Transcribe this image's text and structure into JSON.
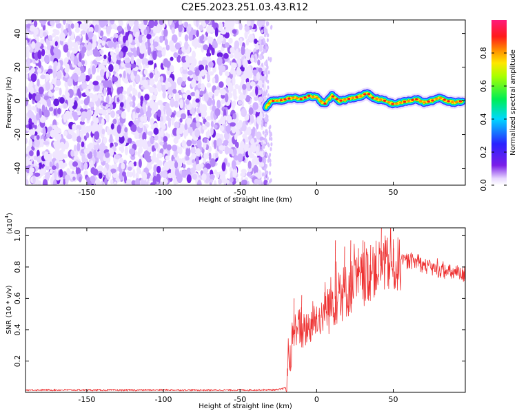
{
  "figure": {
    "title": "C2E5.2023.251.03.43.R12"
  },
  "chart_data": [
    {
      "type": "heatmap",
      "title": "",
      "xlabel": "Height of straight line (km)",
      "ylabel": "Frequency (Hz)",
      "xlim": [
        -190,
        97
      ],
      "ylim": [
        -50,
        48
      ],
      "xticks": [
        -150,
        -100,
        -50,
        0,
        50
      ],
      "yticks": [
        -40,
        -20,
        0,
        20,
        40
      ],
      "xtick_labels": [
        "-150",
        "-100",
        "-50",
        "0",
        "50"
      ],
      "ytick_labels": [
        "-40",
        "-20",
        "0",
        "20",
        "40"
      ],
      "colorbar": {
        "label": "Normalized spectral amplitude",
        "range": [
          0,
          1
        ],
        "ticks": [
          0.0,
          0.2,
          0.4,
          0.6,
          0.8
        ],
        "tick_labels": [
          "0.0",
          "0.2",
          "0.4",
          "0.6",
          "0.8"
        ],
        "colormap": "rainbow (purple-blue-cyan-green-yellow-red-magenta)"
      },
      "regions": [
        {
          "x_range": [
            -190,
            -33
          ],
          "description": "broadband noise speckle across all frequencies",
          "amplitude_range": [
            0.0,
            0.1
          ]
        },
        {
          "x_range": [
            -33,
            97
          ],
          "description": "narrow signal ridge near 0 Hz",
          "amplitude_range": [
            0.8,
            1.0
          ]
        }
      ],
      "ridge": {
        "x": [
          -33,
          -30,
          -25,
          -20,
          -15,
          -10,
          -5,
          0,
          5,
          10,
          15,
          20,
          25,
          30,
          33,
          36,
          40,
          45,
          50,
          55,
          60,
          65,
          70,
          75,
          80,
          85,
          90,
          95
        ],
        "frequency": [
          -4,
          0,
          0,
          1,
          2,
          1,
          3,
          2,
          -2,
          3,
          0,
          1,
          2,
          3,
          5,
          2,
          1,
          0,
          -2,
          -1,
          0,
          1,
          -1,
          0,
          2,
          0,
          -1,
          0
        ]
      }
    },
    {
      "type": "line",
      "title": "",
      "xlabel": "Height of straight line (km)",
      "ylabel": "SNR (10 * v/v)",
      "scale_label": "(x10",
      "scale_exponent": "4",
      "scale_suffix": ")",
      "xlim": [
        -190,
        97
      ],
      "ylim": [
        0,
        1.05
      ],
      "xticks": [
        -150,
        -100,
        -50,
        0,
        50
      ],
      "yticks": [
        0.2,
        0.4,
        0.6,
        0.8,
        1.0
      ],
      "xtick_labels": [
        "-150",
        "-100",
        "-50",
        "0",
        "50"
      ],
      "ytick_labels": [
        "0.2",
        "0.4",
        "0.6",
        "0.8",
        "1.0"
      ],
      "series": [
        {
          "color": "#ee3333",
          "x": [
            -190,
            -160,
            -130,
            -100,
            -70,
            -40,
            -25,
            -20,
            -18,
            -16,
            -14,
            -12,
            -10,
            -5,
            0,
            5,
            10,
            15,
            20,
            25,
            30,
            35,
            40,
            45,
            50,
            55,
            60,
            65,
            70,
            75,
            80,
            85,
            90,
            95,
            97
          ],
          "values": [
            0.015,
            0.015,
            0.014,
            0.015,
            0.014,
            0.015,
            0.016,
            0.03,
            0.2,
            0.3,
            0.4,
            0.45,
            0.38,
            0.42,
            0.47,
            0.5,
            0.58,
            0.62,
            0.65,
            0.7,
            0.72,
            0.76,
            0.8,
            0.82,
            0.8,
            0.82,
            0.84,
            0.83,
            0.81,
            0.79,
            0.78,
            0.77,
            0.76,
            0.75,
            0.75
          ],
          "peaks_x": [
            -15,
            -10,
            5,
            12,
            18,
            22,
            27,
            30,
            35,
            42,
            45,
            50
          ],
          "peaks_y": [
            0.6,
            0.62,
            0.64,
            0.97,
            0.93,
            0.97,
            0.92,
            0.97,
            0.94,
            1.05,
            0.97,
            0.92
          ]
        }
      ]
    }
  ]
}
